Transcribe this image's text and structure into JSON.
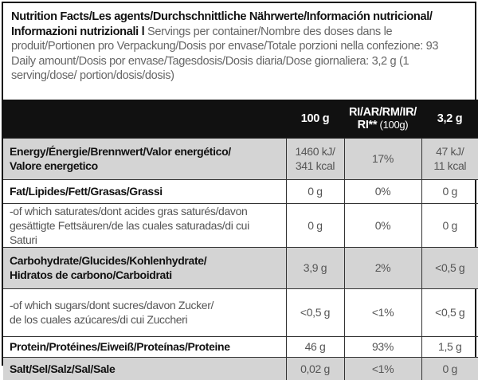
{
  "header": {
    "title_bold": "Nutrition Facts/Les agents/Durchschnittliche Nährwerte/Información nutricional/",
    "title_bold2": "Informazioni nutrizionali l",
    "servings_text": " Servings per container/Nombre des doses dans le produit/Portionen pro Verpackung/Dosis por envase/Totale porzioni nella confezione: 93",
    "daily_text": "Daily amount/Dosis por envase/Tagesdosis/Dosis diaria/Dose giornaliera: 3,2 g (1 serving/dose/ portion/dosis/dosis)"
  },
  "columns": {
    "per100": "100 g",
    "ri_line1": "RI/AR/RM/IR/",
    "ri_line2": "RI**",
    "ri_unit": " (100g)",
    "perserving": "3,2 g"
  },
  "rows": [
    {
      "name1": "Energy/Énergie/Brennwert/Valor energético/",
      "name2": "Valore energetico",
      "v100a": "1460 kJ/",
      "v100b": "341 kcal",
      "ri": "17%",
      "vsa": "47 kJ/",
      "vsb": "11 kcal"
    },
    {
      "name1": "Fat/Lipides/Fett/Grasas/Grassi",
      "v100": "0 g",
      "ri": "0%",
      "vs": "0 g"
    },
    {
      "name1": "-of which saturates/dont acides gras saturés/davon",
      "name2": "gesättigte Fettsäuren/de las cuales saturadas/di cui Saturi",
      "v100": "0 g",
      "ri": "0%",
      "vs": "0 g"
    },
    {
      "name1": "Carbohydrate/Glucides/Kohlenhydrate/",
      "name2": "Hidratos de carbono/Carboidrati",
      "v100": "3,9 g",
      "ri": "2%",
      "vs": "<0,5 g"
    },
    {
      "name1": "-of which sugars/dont sucres/davon Zucker/",
      "name2": "de los cuales azúcares/di cui Zuccheri",
      "v100": "<0,5 g",
      "ri": "<1%",
      "vs": "<0,5 g"
    },
    {
      "name1": "Protein/Protéines/Eiweiß/Proteínas/Proteine",
      "v100": "46 g",
      "ri": "93%",
      "vs": "1,5 g"
    },
    {
      "name1": "Salt/Sel/Salz/Sal/Sale",
      "v100": "0,02 g",
      "ri": "<1%",
      "vs": "0 g"
    }
  ]
}
